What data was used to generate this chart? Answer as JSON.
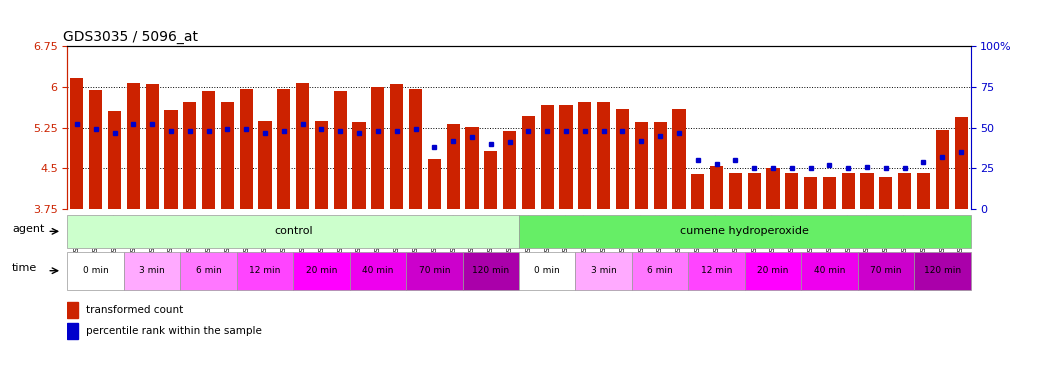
{
  "title": "GDS3035 / 5096_at",
  "samples": [
    "GSM184944",
    "GSM184952",
    "GSM184960",
    "GSM184945",
    "GSM184953",
    "GSM184961",
    "GSM184946",
    "GSM184954",
    "GSM184962",
    "GSM184947",
    "GSM184955",
    "GSM184963",
    "GSM184948",
    "GSM184956",
    "GSM184964",
    "GSM184949",
    "GSM184957",
    "GSM184965",
    "GSM184950",
    "GSM184958",
    "GSM184966",
    "GSM184951",
    "GSM184959",
    "GSM184967",
    "GSM184968",
    "GSM184976",
    "GSM184984",
    "GSM184969",
    "GSM184977",
    "GSM184985",
    "GSM184970",
    "GSM184978",
    "GSM184986",
    "GSM184971",
    "GSM184979",
    "GSM184987",
    "GSM184972",
    "GSM184980",
    "GSM184988",
    "GSM184973",
    "GSM184981",
    "GSM184989",
    "GSM184974",
    "GSM184982",
    "GSM184990",
    "GSM184975",
    "GSM184983",
    "GSM184991"
  ],
  "transformed_counts": [
    6.17,
    5.95,
    5.55,
    6.07,
    6.06,
    5.58,
    5.72,
    5.93,
    5.72,
    5.97,
    5.37,
    5.97,
    6.07,
    5.37,
    5.93,
    5.36,
    6.0,
    6.05,
    5.97,
    4.67,
    5.32,
    5.27,
    4.82,
    5.18,
    5.47,
    5.67,
    5.67,
    5.72,
    5.72,
    5.6,
    5.35,
    5.35,
    5.6,
    4.4,
    4.55,
    4.42,
    4.42,
    4.5,
    4.42,
    4.35,
    4.35,
    4.42,
    4.42,
    4.35,
    4.42,
    4.42,
    5.2,
    5.45
  ],
  "percentile_ranks": [
    52,
    49,
    47,
    52,
    52,
    48,
    48,
    48,
    49,
    49,
    47,
    48,
    52,
    49,
    48,
    47,
    48,
    48,
    49,
    38,
    42,
    44,
    40,
    41,
    48,
    48,
    48,
    48,
    48,
    48,
    42,
    45,
    47,
    30,
    28,
    30,
    25,
    25,
    25,
    25,
    27,
    25,
    26,
    25,
    25,
    29,
    32,
    35
  ],
  "ylim": [
    3.75,
    6.75
  ],
  "yticks": [
    3.75,
    4.5,
    5.25,
    6.0,
    6.75
  ],
  "ytick_labels": [
    "3.75",
    "4.5",
    "5.25",
    "6",
    "6.75"
  ],
  "right_yticks": [
    0,
    25,
    50,
    75,
    100
  ],
  "right_ytick_labels": [
    "0",
    "25",
    "50",
    "75",
    "100%"
  ],
  "bar_color": "#cc2200",
  "percentile_color": "#0000cc",
  "control_color": "#ccffcc",
  "treatment_color": "#66ee66",
  "time_colors": [
    "#ffffff",
    "#ffaaff",
    "#ff77ff",
    "#ff44ff",
    "#ff00ff",
    "#ee00ee",
    "#cc00cc",
    "#aa00aa"
  ],
  "time_labels": [
    "0 min",
    "3 min",
    "6 min",
    "12 min",
    "20 min",
    "40 min",
    "70 min",
    "120 min"
  ],
  "control_count": 24,
  "treatment_count": 24,
  "legend_tc": "transformed count",
  "legend_pr": "percentile rank within the sample",
  "left_axis_color": "#cc2200",
  "right_axis_color": "#0000cc"
}
